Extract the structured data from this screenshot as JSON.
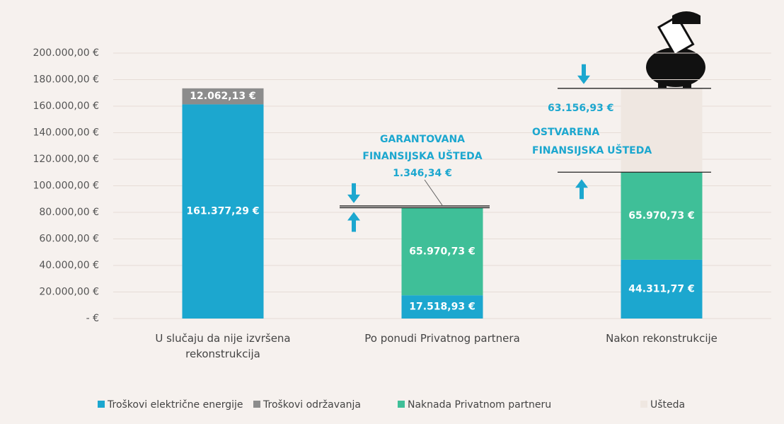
{
  "chart_data": {
    "type": "stacked_bar",
    "categories": [
      "U slučaju da nije izvršena rekonstrukcija",
      "Po ponudi Privatnog partnera",
      "Nakon rekonstrukcije"
    ],
    "series": [
      {
        "name": "Troškovi električne energije",
        "color": "#1ca7cf",
        "values": [
          161377.29,
          17518.93,
          44311.77
        ],
        "value_labels": [
          "161.377,29 €",
          "17.518,93 €",
          "44.311,77 €"
        ]
      },
      {
        "name": "Troškovi održavanja",
        "color": "#8c8c8c",
        "values": [
          12062.13,
          null,
          null
        ],
        "value_labels": [
          "12.062,13 €",
          null,
          null
        ]
      },
      {
        "name": "Naknada Privatnom partneru",
        "color": "#3fbf98",
        "values": [
          null,
          65970.73,
          65970.73
        ],
        "value_labels": [
          null,
          "65.970,73 €",
          "65.970,73 €"
        ]
      },
      {
        "name": "Ušteda",
        "color": "#efe7e1",
        "values": [
          null,
          null,
          63156.93
        ],
        "value_labels": [
          null,
          null,
          "63.156,93 €"
        ]
      }
    ],
    "ylim": [
      0,
      200000
    ],
    "yticks": [
      {
        "value": 0,
        "label": "- €"
      },
      {
        "value": 20000,
        "label": "20.000,00 €"
      },
      {
        "value": 40000,
        "label": "40.000,00 €"
      },
      {
        "value": 60000,
        "label": "60.000,00 €"
      },
      {
        "value": 80000,
        "label": "80.000,00 €"
      },
      {
        "value": 100000,
        "label": "100.000,00 €"
      },
      {
        "value": 120000,
        "label": "120.000,00 €"
      },
      {
        "value": 140000,
        "label": "140.000,00 €"
      },
      {
        "value": 160000,
        "label": "160.000,00 €"
      },
      {
        "value": 180000,
        "label": "180.000,00 €"
      },
      {
        "value": 200000,
        "label": "200.000,00 €"
      }
    ],
    "grid": true,
    "legend": "bottom",
    "annotations": [
      {
        "lines": [
          "GARANTOVANA",
          "FINANSIJSKA UŠTEDA"
        ],
        "value": 1346.34,
        "label": "1.346,34 €"
      },
      {
        "lines": [
          "OSTVARENA",
          "FINANSIJSKA UŠTEDA"
        ]
      }
    ]
  }
}
